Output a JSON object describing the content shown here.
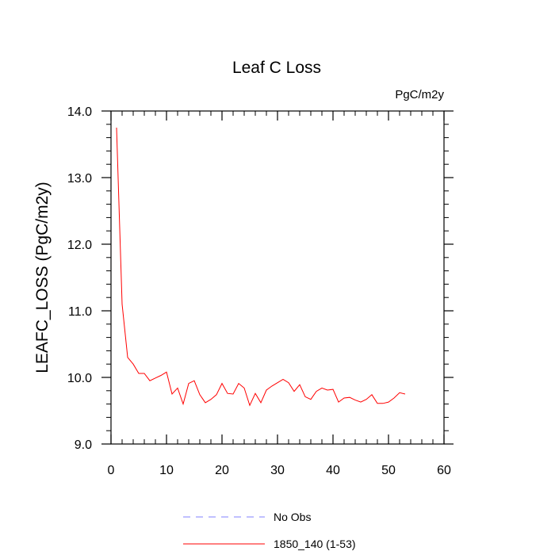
{
  "chart_data": {
    "type": "line",
    "title": "Leaf C Loss",
    "units_label": "PgC/m2y",
    "xlabel": "",
    "ylabel": "LEAFC_LOSS  (PgC/m2y)",
    "xlim": [
      0,
      60
    ],
    "ylim": [
      9.0,
      14.0
    ],
    "x_ticks": [
      0,
      10,
      20,
      30,
      40,
      50,
      60
    ],
    "x_tick_labels": [
      "0",
      "10",
      "20",
      "30",
      "40",
      "50",
      "60"
    ],
    "y_ticks": [
      9.0,
      10.0,
      11.0,
      12.0,
      13.0,
      14.0
    ],
    "y_tick_labels": [
      "9.0",
      "10.0",
      "11.0",
      "12.0",
      "13.0",
      "14.0"
    ],
    "grid": false,
    "legend_position": "bottom-center",
    "legend": [
      {
        "label": "No Obs",
        "color": "#8080ff",
        "style": "dashed"
      },
      {
        "label": "1850_140 (1-53)",
        "color": "#ff0000",
        "style": "solid"
      }
    ],
    "series": [
      {
        "name": "1850_140 (1-53)",
        "color": "#ff0000",
        "x": [
          1,
          2,
          3,
          4,
          5,
          6,
          7,
          8,
          9,
          10,
          11,
          12,
          13,
          14,
          15,
          16,
          17,
          18,
          19,
          20,
          21,
          22,
          23,
          24,
          25,
          26,
          27,
          28,
          29,
          30,
          31,
          32,
          33,
          34,
          35,
          36,
          37,
          38,
          39,
          40,
          41,
          42,
          43,
          44,
          45,
          46,
          47,
          48,
          49,
          50,
          51,
          52,
          53
        ],
        "values": [
          13.75,
          11.1,
          10.3,
          10.2,
          10.06,
          10.06,
          9.95,
          9.99,
          10.03,
          10.08,
          9.75,
          9.84,
          9.6,
          9.91,
          9.95,
          9.74,
          9.62,
          9.67,
          9.74,
          9.91,
          9.76,
          9.75,
          9.91,
          9.84,
          9.58,
          9.76,
          9.62,
          9.81,
          9.87,
          9.92,
          9.97,
          9.92,
          9.79,
          9.89,
          9.71,
          9.67,
          9.79,
          9.84,
          9.81,
          9.82,
          9.63,
          9.69,
          9.7,
          9.66,
          9.63,
          9.67,
          9.74,
          9.61,
          9.61,
          9.63,
          9.69,
          9.77,
          9.75
        ]
      }
    ]
  }
}
